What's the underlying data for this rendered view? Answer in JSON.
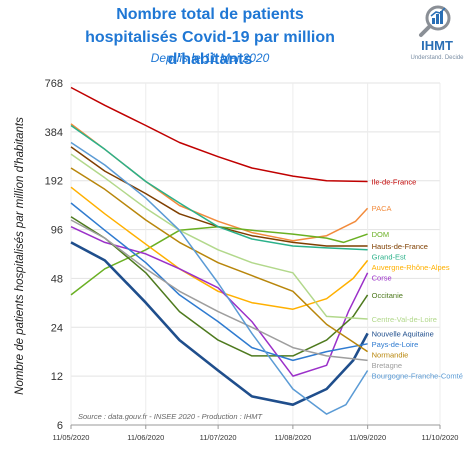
{
  "header": {
    "title_line1": "Nombre total de patients",
    "title_line2": "hospitalisés Covid-19 par million d'habitants",
    "subtitle": "Depuis le 11 Mai 2020"
  },
  "logo": {
    "name": "IHMT",
    "tagline": "Understand. Decide",
    "icon": "magnifier-chart-icon"
  },
  "source": "Source : data.gouv.fr - INSEE 2020 - Production : IHMT",
  "chart_data": {
    "type": "line",
    "title": "Nombre total de patients hospitalisés Covid-19 par million d'habitants",
    "subtitle": "Depuis le 11 Mai 2020",
    "ylabel": "Nombre de patients hospitalisés par million d'habitants",
    "xlabel": "",
    "y_scale": "log2",
    "ylim": [
      6,
      768
    ],
    "y_ticks": [
      6,
      12,
      24,
      48,
      96,
      192,
      384,
      768
    ],
    "x_ticks": [
      "11/05/2020",
      "11/06/2020",
      "11/07/2020",
      "11/08/2020",
      "11/09/2020",
      "11/10/2020"
    ],
    "x_range": [
      "2020-05-11",
      "2020-10-11"
    ],
    "grid": true,
    "series": [
      {
        "name": "Ile-de-France",
        "color": "#c00000",
        "points": [
          [
            "2020-05-11",
            720
          ],
          [
            "2020-05-25",
            560
          ],
          [
            "2020-06-11",
            420
          ],
          [
            "2020-06-25",
            330
          ],
          [
            "2020-07-11",
            270
          ],
          [
            "2020-07-25",
            230
          ],
          [
            "2020-08-11",
            205
          ],
          [
            "2020-08-25",
            192
          ],
          [
            "2020-09-11",
            190
          ]
        ]
      },
      {
        "name": "PACA",
        "color": "#f28b3c",
        "points": [
          [
            "2020-05-11",
            430
          ],
          [
            "2020-05-25",
            300
          ],
          [
            "2020-06-11",
            190
          ],
          [
            "2020-06-25",
            135
          ],
          [
            "2020-07-11",
            108
          ],
          [
            "2020-07-25",
            92
          ],
          [
            "2020-08-11",
            82
          ],
          [
            "2020-08-25",
            88
          ],
          [
            "2020-09-06",
            108
          ],
          [
            "2020-09-11",
            130
          ]
        ]
      },
      {
        "name": "DOM",
        "color": "#6ab023",
        "points": [
          [
            "2020-05-11",
            38
          ],
          [
            "2020-05-25",
            55
          ],
          [
            "2020-06-11",
            72
          ],
          [
            "2020-06-25",
            95
          ],
          [
            "2020-07-11",
            100
          ],
          [
            "2020-07-25",
            95
          ],
          [
            "2020-08-11",
            90
          ],
          [
            "2020-08-25",
            85
          ],
          [
            "2020-09-01",
            80
          ],
          [
            "2020-09-11",
            90
          ]
        ]
      },
      {
        "name": "Hauts-de-France",
        "color": "#7f3f00",
        "points": [
          [
            "2020-05-11",
            310
          ],
          [
            "2020-05-25",
            220
          ],
          [
            "2020-06-11",
            160
          ],
          [
            "2020-06-25",
            120
          ],
          [
            "2020-07-11",
            100
          ],
          [
            "2020-07-25",
            88
          ],
          [
            "2020-08-11",
            80
          ],
          [
            "2020-08-25",
            76
          ],
          [
            "2020-09-11",
            76
          ]
        ]
      },
      {
        "name": "Grand-Est",
        "color": "#2bb18a",
        "points": [
          [
            "2020-05-11",
            420
          ],
          [
            "2020-05-25",
            300
          ],
          [
            "2020-06-11",
            190
          ],
          [
            "2020-06-25",
            140
          ],
          [
            "2020-07-11",
            100
          ],
          [
            "2020-07-25",
            84
          ],
          [
            "2020-08-11",
            76
          ],
          [
            "2020-08-25",
            74
          ],
          [
            "2020-09-11",
            72
          ]
        ]
      },
      {
        "name": "Auvergne-Rhône-Alpes",
        "color": "#ffb000",
        "points": [
          [
            "2020-05-11",
            175
          ],
          [
            "2020-05-25",
            120
          ],
          [
            "2020-06-11",
            78
          ],
          [
            "2020-06-25",
            55
          ],
          [
            "2020-07-11",
            40
          ],
          [
            "2020-07-25",
            34
          ],
          [
            "2020-08-11",
            31
          ],
          [
            "2020-08-25",
            36
          ],
          [
            "2020-09-05",
            48
          ],
          [
            "2020-09-11",
            62
          ]
        ]
      },
      {
        "name": "Corse",
        "color": "#9b30c9",
        "points": [
          [
            "2020-05-11",
            100
          ],
          [
            "2020-05-25",
            80
          ],
          [
            "2020-06-11",
            68
          ],
          [
            "2020-06-25",
            55
          ],
          [
            "2020-07-11",
            42
          ],
          [
            "2020-07-25",
            26
          ],
          [
            "2020-08-11",
            12
          ],
          [
            "2020-08-25",
            14
          ],
          [
            "2020-09-03",
            30
          ],
          [
            "2020-09-11",
            52
          ]
        ]
      },
      {
        "name": "Occitanie",
        "color": "#4e7a1e",
        "points": [
          [
            "2020-05-11",
            115
          ],
          [
            "2020-05-25",
            85
          ],
          [
            "2020-06-11",
            52
          ],
          [
            "2020-06-25",
            30
          ],
          [
            "2020-07-11",
            20
          ],
          [
            "2020-07-25",
            16
          ],
          [
            "2020-08-11",
            16
          ],
          [
            "2020-08-25",
            20
          ],
          [
            "2020-09-05",
            28
          ],
          [
            "2020-09-11",
            38
          ]
        ]
      },
      {
        "name": "Centre-Val-de-Loire",
        "color": "#b2d88b",
        "points": [
          [
            "2020-05-11",
            280
          ],
          [
            "2020-05-25",
            200
          ],
          [
            "2020-06-11",
            130
          ],
          [
            "2020-06-25",
            95
          ],
          [
            "2020-07-11",
            72
          ],
          [
            "2020-07-25",
            60
          ],
          [
            "2020-08-11",
            52
          ],
          [
            "2020-08-25",
            28
          ],
          [
            "2020-09-11",
            27
          ]
        ]
      },
      {
        "name": "Nouvelle Aquitaine",
        "color": "#1f4e8c",
        "points": [
          [
            "2020-05-11",
            80
          ],
          [
            "2020-05-25",
            62
          ],
          [
            "2020-06-11",
            34
          ],
          [
            "2020-06-25",
            20
          ],
          [
            "2020-07-11",
            13
          ],
          [
            "2020-07-25",
            9
          ],
          [
            "2020-08-11",
            8
          ],
          [
            "2020-08-25",
            10
          ],
          [
            "2020-09-05",
            15
          ],
          [
            "2020-09-11",
            22
          ]
        ]
      },
      {
        "name": "Pays-de-Loire",
        "color": "#2f7bd0",
        "points": [
          [
            "2020-05-11",
            140
          ],
          [
            "2020-05-25",
            95
          ],
          [
            "2020-06-11",
            60
          ],
          [
            "2020-06-25",
            38
          ],
          [
            "2020-07-11",
            26
          ],
          [
            "2020-07-25",
            18
          ],
          [
            "2020-08-11",
            15
          ],
          [
            "2020-08-25",
            17
          ],
          [
            "2020-09-11",
            19
          ]
        ]
      },
      {
        "name": "Normandie",
        "color": "#b8860b",
        "points": [
          [
            "2020-05-11",
            230
          ],
          [
            "2020-05-25",
            170
          ],
          [
            "2020-06-11",
            110
          ],
          [
            "2020-06-25",
            80
          ],
          [
            "2020-07-11",
            60
          ],
          [
            "2020-07-25",
            50
          ],
          [
            "2020-08-11",
            40
          ],
          [
            "2020-08-25",
            25
          ],
          [
            "2020-09-11",
            17
          ]
        ]
      },
      {
        "name": "Bretagne",
        "color": "#9e9e9e",
        "points": [
          [
            "2020-05-11",
            110
          ],
          [
            "2020-05-25",
            85
          ],
          [
            "2020-06-11",
            55
          ],
          [
            "2020-06-25",
            40
          ],
          [
            "2020-07-11",
            30
          ],
          [
            "2020-07-25",
            24
          ],
          [
            "2020-08-11",
            18
          ],
          [
            "2020-08-25",
            16
          ],
          [
            "2020-09-11",
            15
          ]
        ]
      },
      {
        "name": "Bourgogne-Franche-Comté",
        "color": "#5b9bd5",
        "points": [
          [
            "2020-05-11",
            330
          ],
          [
            "2020-05-25",
            240
          ],
          [
            "2020-06-11",
            150
          ],
          [
            "2020-06-25",
            95
          ],
          [
            "2020-07-11",
            45
          ],
          [
            "2020-07-25",
            22
          ],
          [
            "2020-08-11",
            10
          ],
          [
            "2020-08-25",
            7
          ],
          [
            "2020-09-02",
            8
          ],
          [
            "2020-09-11",
            13
          ]
        ]
      }
    ]
  }
}
